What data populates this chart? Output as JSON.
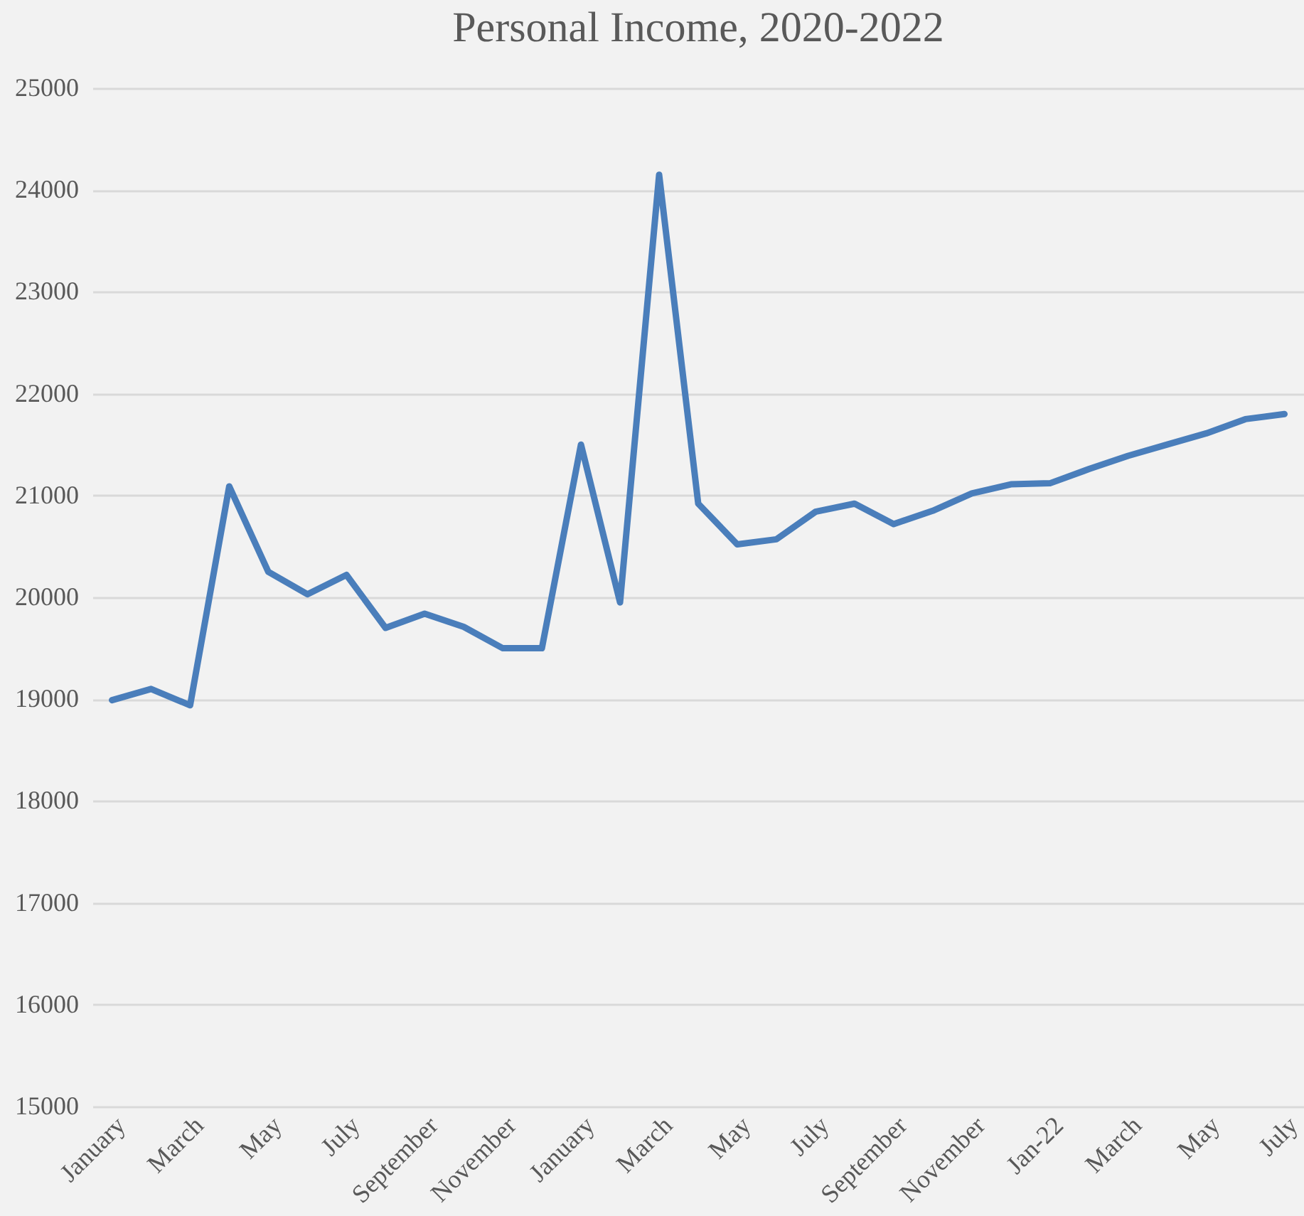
{
  "chart_data": {
    "type": "line",
    "title": "Personal Income, 2020-2022",
    "categories": [
      "January",
      null,
      "March",
      null,
      "May",
      null,
      "July",
      null,
      "September",
      null,
      "November",
      null,
      "January",
      null,
      "March",
      null,
      "May",
      null,
      "July",
      null,
      "September",
      null,
      "November",
      null,
      "Jan-22",
      null,
      "March",
      null,
      "May",
      null,
      "July"
    ],
    "series": [
      {
        "color": "#4a7ebb",
        "values": [
          18990,
          19100,
          18940,
          21090,
          20250,
          20030,
          20220,
          19700,
          19840,
          19710,
          19500,
          19500,
          21500,
          19950,
          24150,
          20920,
          20520,
          20570,
          20840,
          20920,
          20720,
          20850,
          21020,
          21110,
          21120,
          21260,
          21390,
          21500,
          21610,
          21750,
          21800
        ]
      }
    ],
    "ylim": [
      15000,
      25000
    ],
    "yticks": [
      15000,
      16000,
      17000,
      18000,
      19000,
      20000,
      21000,
      22000,
      23000,
      24000,
      25000
    ],
    "grid": "y",
    "marker": "none",
    "line_style": "solid"
  }
}
